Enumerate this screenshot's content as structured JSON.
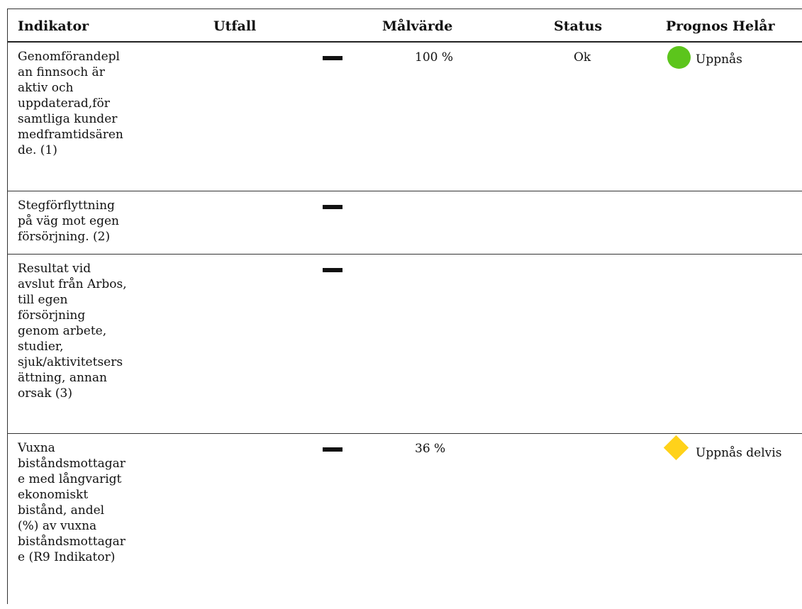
{
  "header": {
    "indikator": "Indikator",
    "utfall": "Utfall",
    "malvarde": "Målvärde",
    "status": "Status",
    "prognos": "Prognos Helår"
  },
  "rows": [
    {
      "indikator": "Genomförandepl\nan finnsoch är\naktiv och\nuppdaterad,för\nsamtliga kunder\nmedframtidsären\nde. (1)",
      "malvarde": "100 %",
      "status": "Ok",
      "prognos_icon": "green-circle-icon",
      "prognos": "Uppnås"
    },
    {
      "indikator": "Stegförflyttning\npå väg mot egen\nförsörjning. (2)",
      "malvarde": "",
      "status": "",
      "prognos_icon": "",
      "prognos": ""
    },
    {
      "indikator": "Resultat vid\navslut från Arbos,\ntill egen\nförsörjning\ngenom arbete,\nstudier,\nsjuk/aktivitetsers\nättning, annan\norsak (3)",
      "malvarde": "",
      "status": "",
      "prognos_icon": "",
      "prognos": ""
    },
    {
      "indikator": "Vuxna\nbiståndsmottagar\ne med långvarigt\nekonomiskt\nbistånd, andel\n(%) av vuxna\nbiståndsmottagar\ne (R9 Indikator)",
      "malvarde": "36 %",
      "status": "",
      "prognos_icon": "yellow-diamond-icon",
      "prognos": "Uppnås delvis"
    }
  ],
  "colors": {
    "green": "#5cc51c",
    "yellow": "#ffd21a"
  }
}
